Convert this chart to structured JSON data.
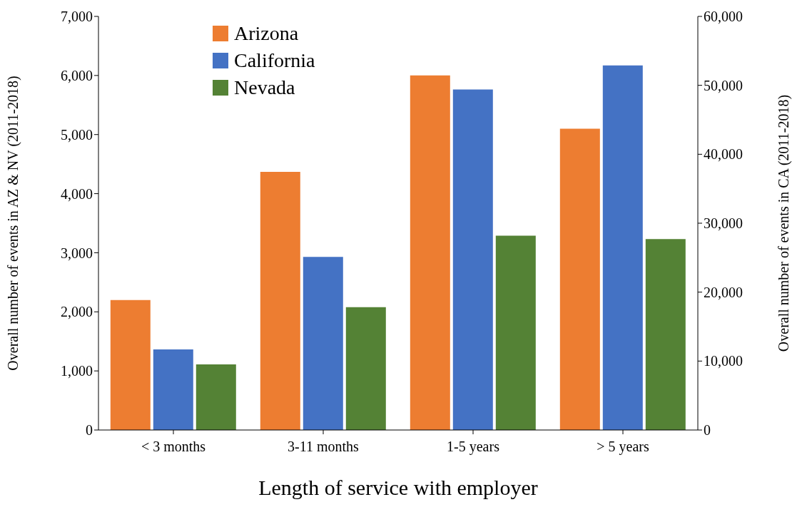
{
  "chart_data": {
    "type": "bar",
    "xlabel": "Length of service with employer",
    "ylabel": "Overall number of events in AZ & NV (2011-2018)",
    "y2label": "Overall number of events in CA (2011-2018)",
    "categories": [
      "< 3 months",
      "3-11 months",
      "1-5 years",
      "> 5 years"
    ],
    "series": [
      {
        "name": "Arizona",
        "color": "#ed7d31",
        "values": [
          2200,
          4370,
          6000,
          5100
        ]
      },
      {
        "name": "California",
        "color": "#4472c4",
        "axis": "y2",
        "values": [
          11700,
          25100,
          49400,
          52900
        ]
      },
      {
        "name": "Nevada",
        "color": "#548235",
        "values": [
          1110,
          2080,
          3290,
          3230
        ]
      }
    ],
    "ylim": [
      0,
      7000
    ],
    "yticks": [
      0,
      {
        "value": 1000,
        "label": "1,000"
      },
      {
        "value": 2000,
        "label": "2,000"
      },
      {
        "value": 3000,
        "label": "3,000"
      },
      {
        "value": 4000,
        "label": "4,000"
      },
      {
        "value": 5000,
        "label": "5,000"
      },
      {
        "value": 6000,
        "label": "6,000"
      },
      {
        "value": 7000,
        "label": "7,000"
      }
    ],
    "y2lim": [
      0,
      60000
    ],
    "y2ticks": [
      0,
      {
        "value": 10000,
        "label": "10,000"
      },
      {
        "value": 20000,
        "label": "20,000"
      },
      {
        "value": 30000,
        "label": "30,000"
      },
      {
        "value": 40000,
        "label": "40,000"
      },
      {
        "value": 50000,
        "label": "50,000"
      },
      {
        "value": 60000,
        "label": "60,000"
      }
    ],
    "grid": false,
    "legend": "top left"
  }
}
